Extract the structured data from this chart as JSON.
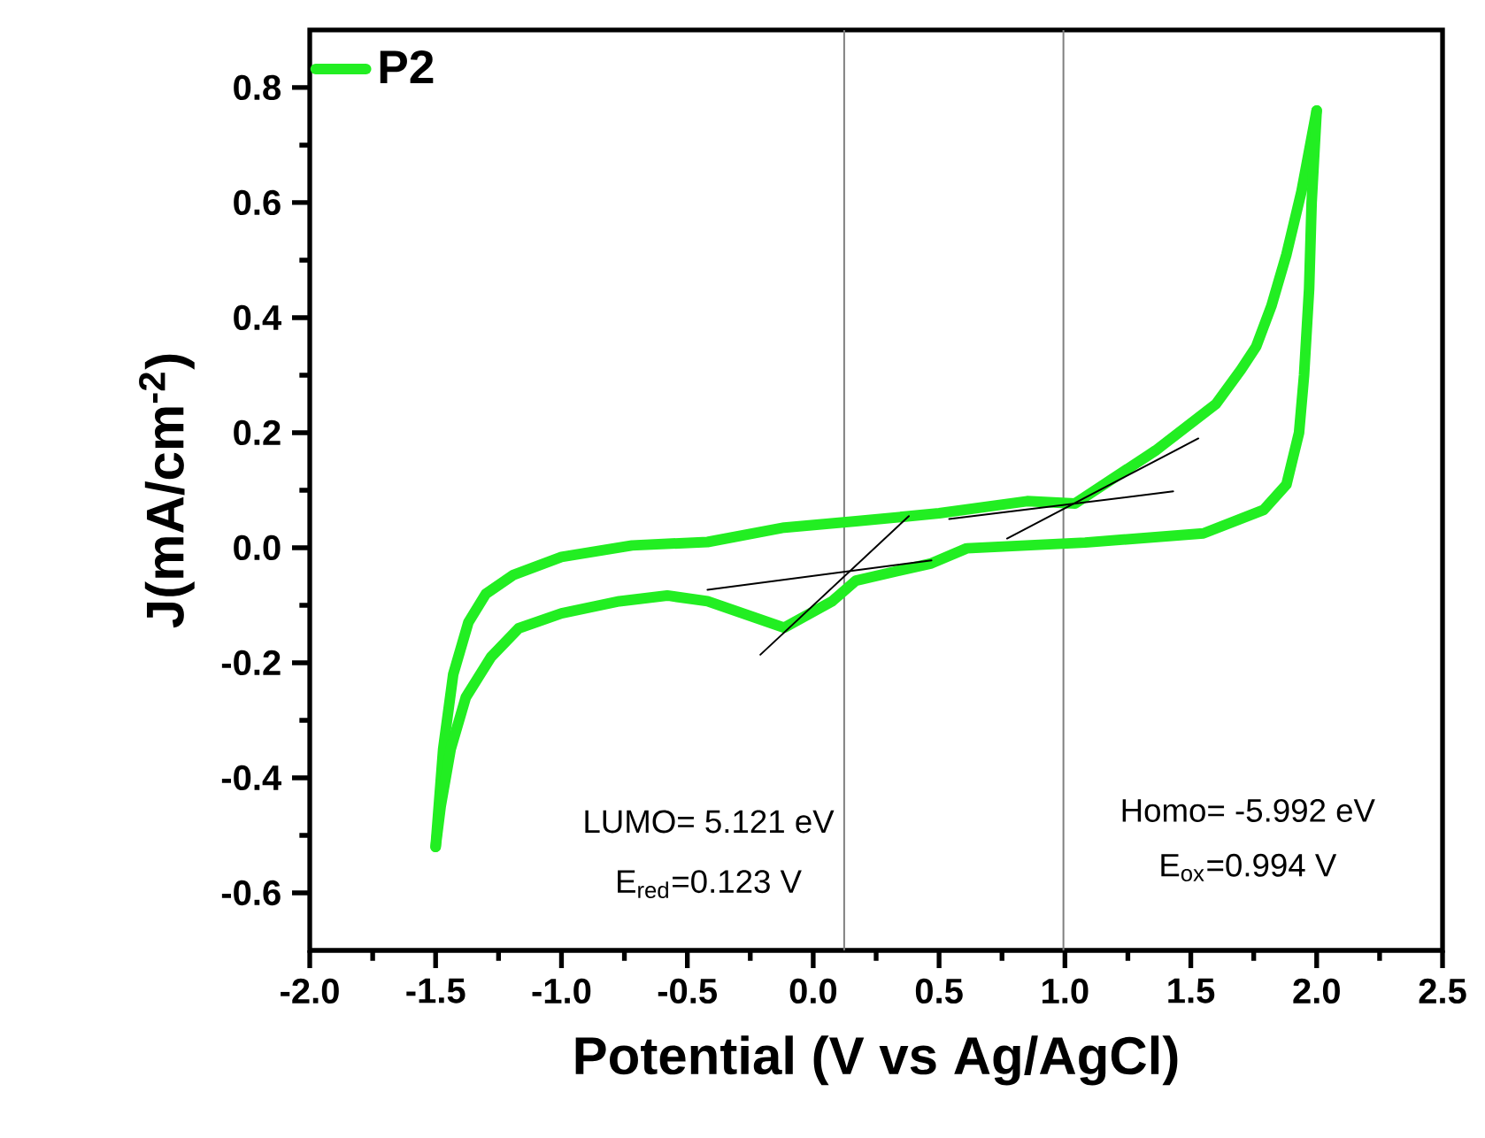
{
  "chart_data": {
    "type": "line",
    "xlabel": "Potential (V vs Ag/AgCl)",
    "ylabel": "J(mA/cm$^{-2}$)",
    "xlim": [
      -2.0,
      2.5
    ],
    "ylim": [
      -0.7,
      0.9
    ],
    "xticks": [
      {
        "value": -2.0,
        "label": "-2.0"
      },
      {
        "value": -1.5,
        "label": "-1.5"
      },
      {
        "value": -1.0,
        "label": "-1.0"
      },
      {
        "value": -0.5,
        "label": "-0.5"
      },
      {
        "value": 0.0,
        "label": "0.0"
      },
      {
        "value": 0.5,
        "label": "0.5"
      },
      {
        "value": 1.0,
        "label": "1.0"
      },
      {
        "value": 1.5,
        "label": "1.5"
      },
      {
        "value": 2.0,
        "label": "2.0"
      },
      {
        "value": 2.5,
        "label": "2.5"
      }
    ],
    "yticks": [
      {
        "value": -0.6,
        "label": "-0.6"
      },
      {
        "value": -0.4,
        "label": "-0.4"
      },
      {
        "value": -0.2,
        "label": "-0.2"
      },
      {
        "value": 0.0,
        "label": "0.0"
      },
      {
        "value": 0.2,
        "label": "0.2"
      },
      {
        "value": 0.4,
        "label": "0.4"
      },
      {
        "value": 0.6,
        "label": "0.6"
      },
      {
        "value": 0.8,
        "label": "0.8"
      }
    ],
    "legend": "top left",
    "grid": false,
    "marker": "none",
    "line_style": "solid",
    "series": [
      {
        "name": "P2",
        "color": "#22ee22",
        "x": [
          -1.5,
          -1.47,
          -1.43,
          -1.37,
          -1.3,
          -1.19,
          -1.0,
          -0.72,
          -0.42,
          -0.115,
          0.17,
          0.5,
          0.85,
          1.04,
          1.36,
          1.6,
          1.7,
          1.76,
          1.82,
          1.88,
          1.94,
          2.0
        ],
        "values": [
          -0.52,
          -0.35,
          -0.22,
          -0.13,
          -0.08,
          -0.047,
          -0.016,
          0.004,
          0.01,
          0.035,
          0.046,
          0.06,
          0.081,
          0.077,
          0.169,
          0.25,
          0.31,
          0.35,
          0.42,
          0.51,
          0.62,
          0.76
        ]
      },
      {
        "color": "#22ee22",
        "x": [
          2.0,
          1.98,
          1.97,
          1.95,
          1.93,
          1.88,
          1.79,
          1.55,
          1.08,
          0.61,
          0.47,
          0.17,
          0.075,
          -0.115,
          -0.42,
          -0.58,
          -0.77,
          -1.0,
          -1.17,
          -1.28,
          -1.38,
          -1.44,
          -1.48,
          -1.5
        ],
        "values": [
          0.76,
          0.6,
          0.45,
          0.3,
          0.2,
          0.11,
          0.066,
          0.025,
          0.009,
          -0.001,
          -0.027,
          -0.057,
          -0.093,
          -0.139,
          -0.093,
          -0.083,
          -0.093,
          -0.114,
          -0.14,
          -0.19,
          -0.26,
          -0.35,
          -0.45,
          -0.52
        ]
      },
      {
        "color": "#000000",
        "x": [
          -0.42,
          0.47
        ],
        "values": [
          -0.073,
          -0.022
        ]
      },
      {
        "color": "#000000",
        "x": [
          -0.21,
          0.38
        ],
        "values": [
          -0.186,
          0.055
        ]
      },
      {
        "color": "#000000",
        "x": [
          0.54,
          1.43
        ],
        "values": [
          0.05,
          0.098
        ]
      },
      {
        "color": "#000000",
        "x": [
          0.77,
          1.53
        ],
        "values": [
          0.016,
          0.19
        ]
      }
    ],
    "ref_lines": [
      {
        "axis": "x",
        "value": 0.123,
        "color": "#808080"
      },
      {
        "axis": "x",
        "value": 0.994,
        "color": "#808080"
      }
    ],
    "annotations": [
      "LUMO= 5.121 eV",
      "E$_{red}$=0.123 V",
      "Homo= -5.992 eV",
      "E$_{ox}$=0.994 V"
    ]
  }
}
